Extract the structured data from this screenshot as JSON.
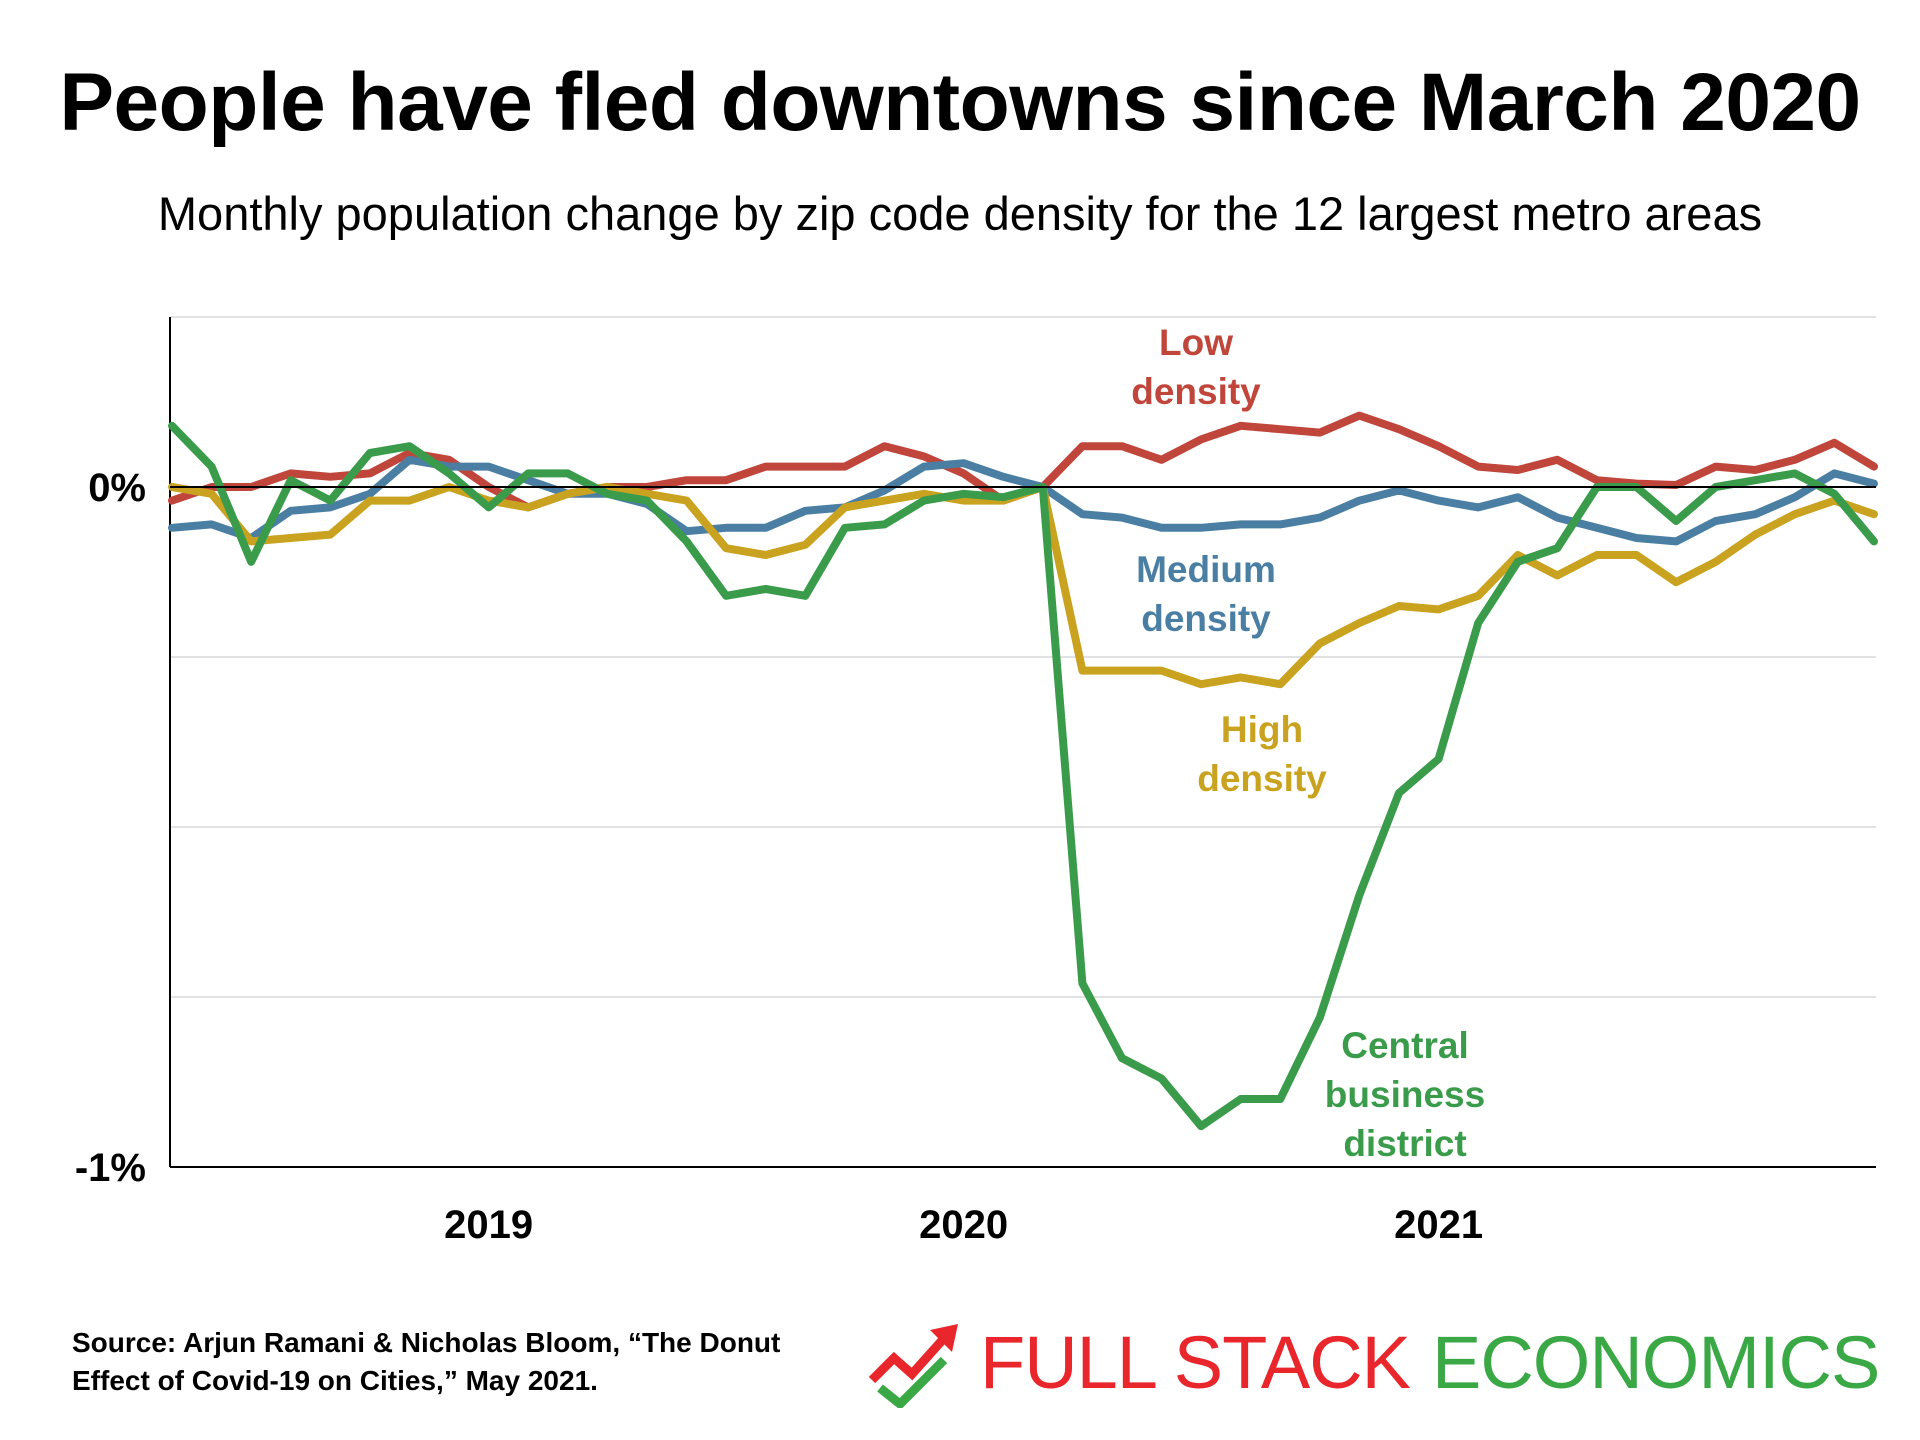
{
  "title": "People have fled downtowns since March 2020",
  "subtitle": "Monthly population change by zip code density for the 12 largest metro areas",
  "source": "Source: Arjun Ramani & Nicholas Bloom, “The Donut Effect of Covid-19 on Cities,” May 2021.",
  "brand": {
    "part1": "FULL STACK",
    "part2": "ECONOMICS",
    "icon": "rising-arrow-checkmark-icon",
    "color1": "#e8262b",
    "color2": "#3aa845"
  },
  "chart_data": {
    "type": "line",
    "title": "People have fled downtowns since March 2020",
    "subtitle": "Monthly population change by zip code density for the 12 largest metro areas",
    "xlabel": "",
    "ylabel": "",
    "x_tick_labels": [
      "2019",
      "2020",
      "2021"
    ],
    "x_tick_months": [
      "2019-01",
      "2020-01",
      "2021-01"
    ],
    "y_tick_labels": [
      "0%",
      "-1%"
    ],
    "y_tick_values": [
      0,
      -1
    ],
    "ylim": [
      -1,
      0.25
    ],
    "xlim": [
      "2018-05",
      "2021-12"
    ],
    "grid": "horizontal gridlines every 0.25",
    "colors": {
      "low": "#c0463b",
      "medium": "#4a7fa3",
      "high": "#c9a21f",
      "cbd": "#3a9c4b"
    },
    "x": [
      "2018-05",
      "2018-06",
      "2018-07",
      "2018-08",
      "2018-09",
      "2018-10",
      "2018-11",
      "2018-12",
      "2019-01",
      "2019-02",
      "2019-03",
      "2019-04",
      "2019-05",
      "2019-06",
      "2019-07",
      "2019-08",
      "2019-09",
      "2019-10",
      "2019-11",
      "2019-12",
      "2020-01",
      "2020-02",
      "2020-03",
      "2020-04",
      "2020-05",
      "2020-06",
      "2020-07",
      "2020-08",
      "2020-09",
      "2020-10",
      "2020-11",
      "2020-12",
      "2021-01",
      "2021-02",
      "2021-03",
      "2021-04",
      "2021-05",
      "2021-06",
      "2021-07",
      "2021-08",
      "2021-09",
      "2021-10",
      "2021-11",
      "2021-12"
    ],
    "series": [
      {
        "name": "Low density",
        "label_lines": [
          "Low",
          "density"
        ],
        "color": "#c0463b",
        "values": [
          -0.02,
          0.0,
          0.0,
          0.02,
          0.015,
          0.02,
          0.05,
          0.04,
          0.0,
          -0.03,
          -0.01,
          0.0,
          0.0,
          0.01,
          0.01,
          0.03,
          0.03,
          0.03,
          0.06,
          0.045,
          0.02,
          -0.02,
          0.0,
          0.06,
          0.06,
          0.04,
          0.07,
          0.09,
          0.085,
          0.08,
          0.105,
          0.085,
          0.06,
          0.03,
          0.025,
          0.04,
          0.01,
          0.005,
          0.003,
          0.03,
          0.025,
          0.04,
          0.065,
          0.03
        ]
      },
      {
        "name": "Medium density",
        "label_lines": [
          "Medium",
          "density"
        ],
        "color": "#4a7fa3",
        "values": [
          -0.06,
          -0.055,
          -0.075,
          -0.035,
          -0.03,
          -0.01,
          0.04,
          0.03,
          0.03,
          0.01,
          -0.01,
          -0.01,
          -0.025,
          -0.065,
          -0.06,
          -0.06,
          -0.035,
          -0.03,
          -0.005,
          0.03,
          0.035,
          0.015,
          0.0,
          -0.04,
          -0.045,
          -0.06,
          -0.06,
          -0.055,
          -0.055,
          -0.045,
          -0.02,
          -0.005,
          -0.02,
          -0.03,
          -0.015,
          -0.045,
          -0.06,
          -0.075,
          -0.08,
          -0.05,
          -0.04,
          -0.015,
          0.02,
          0.005
        ]
      },
      {
        "name": "High density",
        "label_lines": [
          "High",
          "density"
        ],
        "color": "#c9a21f",
        "values": [
          0.0,
          -0.01,
          -0.08,
          -0.075,
          -0.07,
          -0.02,
          -0.02,
          0.0,
          -0.02,
          -0.03,
          -0.01,
          0.0,
          -0.01,
          -0.02,
          -0.09,
          -0.1,
          -0.085,
          -0.03,
          -0.02,
          -0.01,
          -0.02,
          -0.02,
          0.0,
          -0.27,
          -0.27,
          -0.27,
          -0.29,
          -0.28,
          -0.29,
          -0.23,
          -0.2,
          -0.175,
          -0.18,
          -0.16,
          -0.1,
          -0.13,
          -0.1,
          -0.1,
          -0.14,
          -0.11,
          -0.07,
          -0.04,
          -0.02,
          -0.04
        ]
      },
      {
        "name": "Central business district",
        "label_lines": [
          "Central",
          "business",
          "district"
        ],
        "color": "#3a9c4b",
        "values": [
          0.09,
          0.03,
          -0.11,
          0.01,
          -0.02,
          0.05,
          0.06,
          0.02,
          -0.03,
          0.02,
          0.02,
          -0.01,
          -0.02,
          -0.08,
          -0.16,
          -0.15,
          -0.16,
          -0.06,
          -0.055,
          -0.02,
          -0.01,
          -0.015,
          0.0,
          -0.73,
          -0.84,
          -0.87,
          -0.94,
          -0.9,
          -0.9,
          -0.78,
          -0.6,
          -0.45,
          -0.4,
          -0.2,
          -0.11,
          -0.09,
          0.0,
          0.0,
          -0.05,
          0.0,
          0.01,
          0.02,
          -0.01,
          -0.08
        ]
      }
    ]
  }
}
